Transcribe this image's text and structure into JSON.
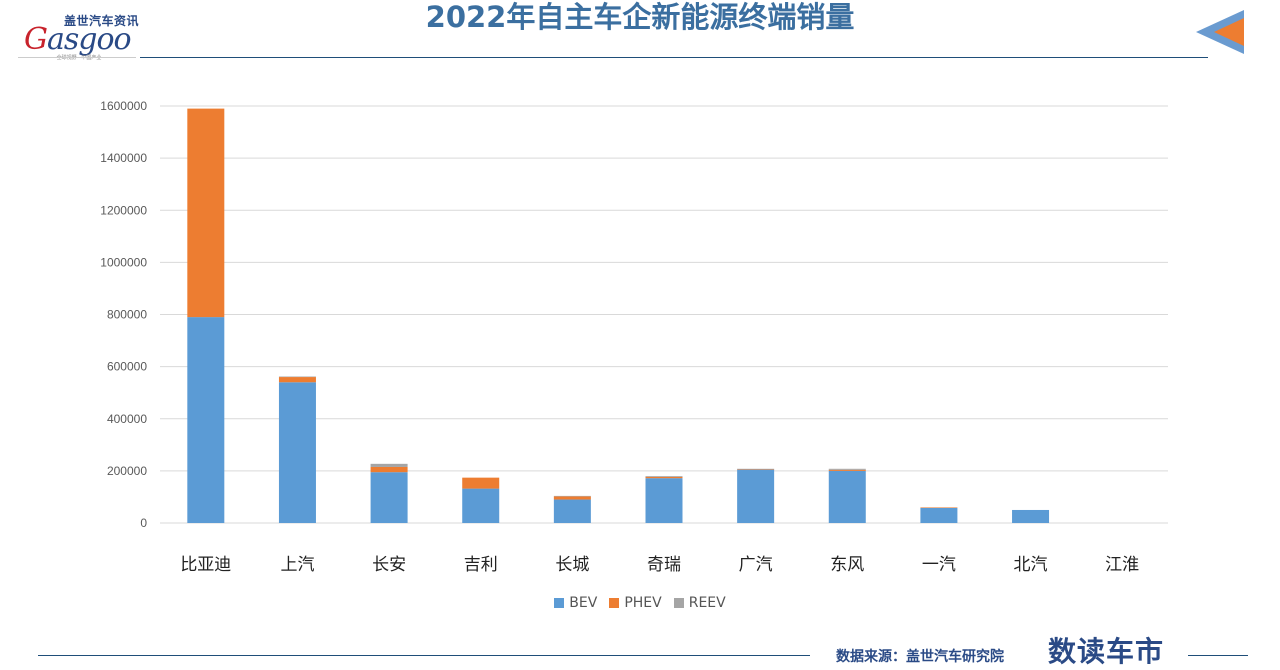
{
  "logo": {
    "cn": "盖世汽车资讯",
    "en_g": "G",
    "en_rest": "asgoo",
    "tag": "全球视野 · 中国产业"
  },
  "header": {
    "title": "2022年自主车企新能源终端销量"
  },
  "footer": {
    "source": "数据来源：盖世汽车研究院",
    "brand": "数读车市"
  },
  "chart_data": {
    "type": "bar",
    "stacked": true,
    "title": "",
    "xlabel": "",
    "ylabel": "",
    "ylim": [
      0,
      1600000
    ],
    "yticks": [
      0,
      200000,
      400000,
      600000,
      800000,
      1000000,
      1200000,
      1400000,
      1600000
    ],
    "ytick_labels": [
      "0",
      "200000",
      "400000",
      "600000",
      "800000",
      "1000000",
      "1200000",
      "1400000",
      "1600000"
    ],
    "grid": true,
    "legend_position": "bottom",
    "categories": [
      "比亚迪",
      "上汽",
      "长安",
      "吉利",
      "长城",
      "奇瑞",
      "广汽",
      "东风",
      "一汽",
      "北汽",
      "江淮"
    ],
    "series": [
      {
        "name": "BEV",
        "color": "#5b9bd5",
        "values": [
          790000,
          540000,
          195000,
          132000,
          90000,
          172000,
          205000,
          200000,
          58000,
          50000,
          0
        ]
      },
      {
        "name": "PHEV",
        "color": "#ed7d31",
        "values": [
          800000,
          20000,
          20000,
          42000,
          12000,
          5000,
          2000,
          4000,
          2000,
          0,
          0
        ]
      },
      {
        "name": "REEV",
        "color": "#a5a5a5",
        "values": [
          0,
          2000,
          12000,
          0,
          2000,
          3000,
          1000,
          4000,
          0,
          0,
          0
        ]
      }
    ]
  }
}
